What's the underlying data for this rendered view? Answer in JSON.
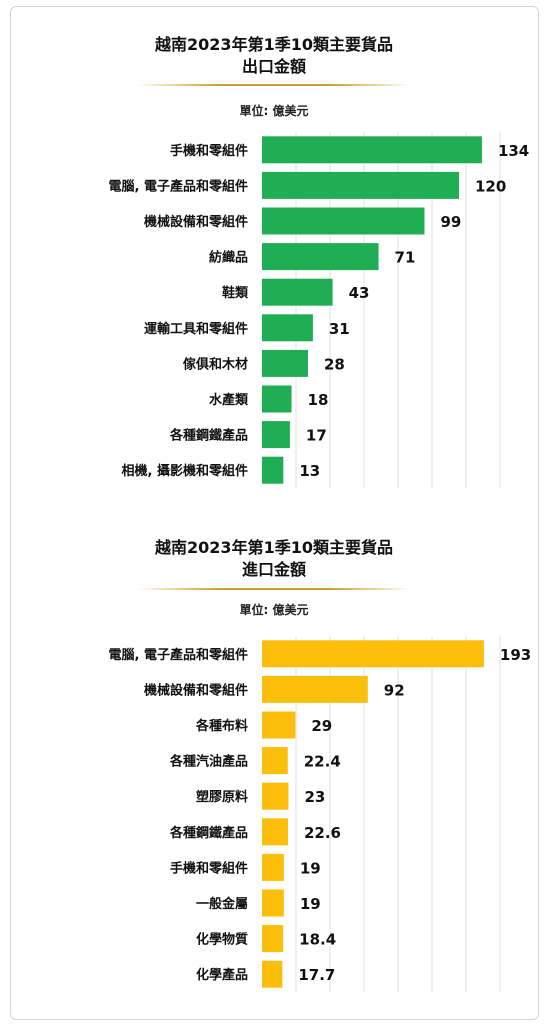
{
  "chart_data": [
    {
      "type": "bar",
      "orientation": "horizontal",
      "title_line1": "越南2023年第1季10類主要貨品",
      "title_line2": "出口金額",
      "unit": "單位: 億美元",
      "color": "#1fae54",
      "grid": true,
      "xlim": [
        0,
        145
      ],
      "categories": [
        "手機和零組件",
        "電腦, 電子產品和零組件",
        "機械設備和零組件",
        "紡織品",
        "鞋類",
        "運輸工具和零組件",
        "傢俱和木材",
        "水產類",
        "各種鋼鐵產品",
        "相機, 攝影機和零組件"
      ],
      "values": [
        134,
        120,
        99,
        71,
        43,
        31,
        28,
        18,
        17,
        13
      ],
      "value_labels": [
        "134",
        "120",
        "99",
        "71",
        "43",
        "31",
        "28",
        "18",
        "17",
        "13"
      ]
    },
    {
      "type": "bar",
      "orientation": "horizontal",
      "title_line1": "越南2023年第1季10類主要貨品",
      "title_line2": "進口金額",
      "unit": "單位: 億美元",
      "color": "#fbbf0b",
      "grid": true,
      "xlim": [
        0,
        207
      ],
      "categories": [
        "電腦, 電子產品和零組件",
        "機械設備和零組件",
        "各種布料",
        "各種汽油產品",
        "塑膠原料",
        "各種鋼鐵產品",
        "手機和零組件",
        "一般金屬",
        "化學物質",
        "化學產品"
      ],
      "values": [
        193,
        92,
        29,
        22.4,
        23,
        22.6,
        19,
        19,
        18.4,
        17.7
      ],
      "value_labels": [
        "193",
        "92",
        "29",
        "22.4",
        "23",
        "22.6",
        "19",
        "19",
        "18.4",
        "17.7"
      ]
    }
  ]
}
